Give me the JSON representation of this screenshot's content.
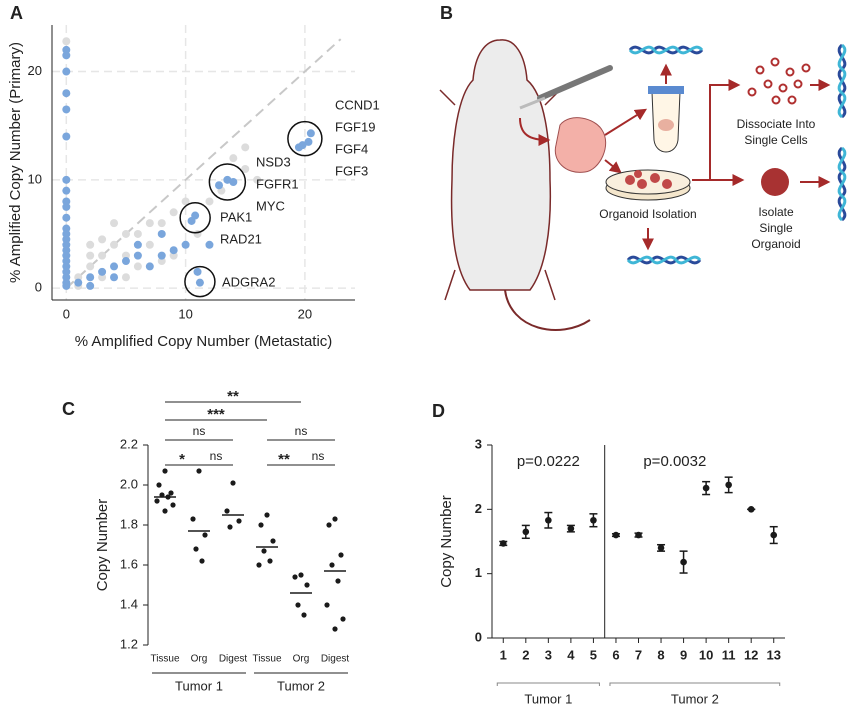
{
  "chart_data": [
    {
      "type": "scatter",
      "panel": "A",
      "xlabel": "% Amplified Copy Number (Metastatic)",
      "ylabel": "% Amplified Copy Number (Primary)",
      "xlim": [
        -1.2,
        24.2
      ],
      "ylim": [
        -1.1,
        24.3
      ],
      "xticks": [
        0,
        10,
        20
      ],
      "yticks": [
        0,
        10,
        20
      ],
      "grid": true,
      "series": [
        {
          "color": "#dcdcdc",
          "x": [
            0,
            1,
            2,
            3,
            4,
            5,
            6,
            3,
            2,
            5,
            7,
            8,
            9,
            10,
            12,
            13,
            14,
            15,
            16,
            15,
            7,
            4,
            1,
            5,
            6,
            8,
            3,
            2,
            11,
            9
          ],
          "values": [
            22.8,
            1,
            2,
            3,
            4,
            5,
            5,
            1,
            3,
            3,
            4,
            6,
            7,
            8,
            8,
            9,
            12,
            11,
            10,
            13,
            6,
            6,
            0.2,
            1,
            2,
            2.5,
            4.5,
            4,
            5,
            3
          ]
        },
        {
          "color": "#7aa6dc",
          "x": [
            0,
            0,
            0,
            0,
            0,
            0,
            0,
            0,
            0,
            0,
            0,
            0,
            0,
            0,
            0,
            0,
            0,
            0,
            0,
            0,
            0,
            0,
            0,
            20.5,
            20.3,
            19.8,
            19.5,
            13.5,
            14,
            12.8,
            10.8,
            10.5,
            11.2,
            1,
            2,
            3,
            4,
            5,
            6,
            7,
            8,
            9,
            10,
            8,
            6,
            4,
            2,
            12,
            11
          ],
          "values": [
            22,
            21.5,
            20,
            18,
            16.5,
            14,
            10,
            9,
            8,
            7.5,
            6.5,
            5.5,
            5,
            4.5,
            4,
            3.5,
            3,
            2.5,
            2,
            1.5,
            1,
            0.5,
            0.2,
            14.3,
            13.5,
            13.2,
            13,
            10,
            9.8,
            9.5,
            6.7,
            6.2,
            0.5,
            0.5,
            1,
            1.5,
            2,
            2.5,
            3,
            2,
            3,
            3.5,
            4,
            5,
            4,
            1,
            0.2,
            4,
            1.5
          ]
        }
      ],
      "annotations": [
        [
          "CCND1",
          "FGF19",
          "FGF4",
          "FGF3"
        ],
        [
          "NSD3",
          "FGFR1",
          "MYC"
        ],
        [
          "PAK1",
          "RAD21"
        ],
        [
          "ADGRA2"
        ]
      ]
    },
    {
      "type": "strip",
      "panel": "C",
      "ylabel": "Copy Number",
      "categories": [
        "Tissue",
        "Org",
        "Digest",
        "Tissue",
        "Org",
        "Digest"
      ],
      "groups": [
        {
          "name": "Tumor 1",
          "span": [
            0,
            2
          ]
        },
        {
          "name": "Tumor 2",
          "span": [
            3,
            5
          ]
        }
      ],
      "ylim": [
        1.2,
        2.2
      ],
      "yticks": [
        1.2,
        1.4,
        1.6,
        1.8,
        {
          "value": 2,
          "label": "2.0"
        },
        2.2
      ],
      "color": "#1a1a1a",
      "values": [
        [
          2.07,
          2.0,
          1.96,
          1.95,
          1.94,
          1.92,
          1.9,
          1.87
        ],
        [
          2.07,
          1.83,
          1.75,
          1.68,
          1.62
        ],
        [
          2.01,
          1.87,
          1.82,
          1.79
        ],
        [
          1.85,
          1.8,
          1.72,
          1.67,
          1.62,
          1.6
        ],
        [
          1.55,
          1.54,
          1.5,
          1.4,
          1.35
        ],
        [
          1.83,
          1.8,
          1.65,
          1.6,
          1.52,
          1.4,
          1.33,
          1.28
        ]
      ],
      "means": [
        1.94,
        1.77,
        1.85,
        1.69,
        1.46,
        1.57
      ],
      "comparisons": [
        {
          "pair": [
            0,
            1
          ],
          "label": "*"
        },
        {
          "pair": [
            1,
            2
          ],
          "label": "ns"
        },
        {
          "pair": [
            0,
            2
          ],
          "label": "ns"
        },
        {
          "pair": [
            3,
            4
          ],
          "label": "**"
        },
        {
          "pair": [
            4,
            5
          ],
          "label": "ns"
        },
        {
          "pair": [
            3,
            5
          ],
          "label": "ns"
        },
        {
          "pair": [
            0,
            3
          ],
          "label": "***"
        },
        {
          "pair": [
            0,
            4
          ],
          "label": "**"
        }
      ]
    },
    {
      "type": "errorbar",
      "panel": "D",
      "ylabel": "Copy Number",
      "categories": [
        "1",
        "2",
        "3",
        "4",
        "5",
        "6",
        "7",
        "8",
        "9",
        "10",
        "11",
        "12",
        "13"
      ],
      "groups": [
        {
          "name": "Tumor 1",
          "span": [
            0,
            4
          ],
          "annotation": "p=0.0222"
        },
        {
          "name": "Tumor 2",
          "span": [
            5,
            12
          ],
          "annotation": "p=0.0032"
        }
      ],
      "ylim": [
        0,
        3
      ],
      "yticks": [
        0,
        1,
        2,
        3
      ],
      "color": "#1a1a1a",
      "values": [
        1.47,
        1.65,
        1.83,
        1.7,
        1.83,
        1.6,
        1.6,
        1.4,
        1.18,
        2.33,
        2.38,
        2.0,
        1.6
      ],
      "errors": [
        0.03,
        0.1,
        0.12,
        0.05,
        0.1,
        0.02,
        0.03,
        0.05,
        0.17,
        0.1,
        0.12,
        0,
        0.13
      ]
    }
  ],
  "diagram": {
    "panel": "B",
    "texts": [
      "Dissociate Into",
      "Single Cells",
      "Organoid Isolation",
      "Isolate",
      "Single",
      "Organoid"
    ]
  }
}
